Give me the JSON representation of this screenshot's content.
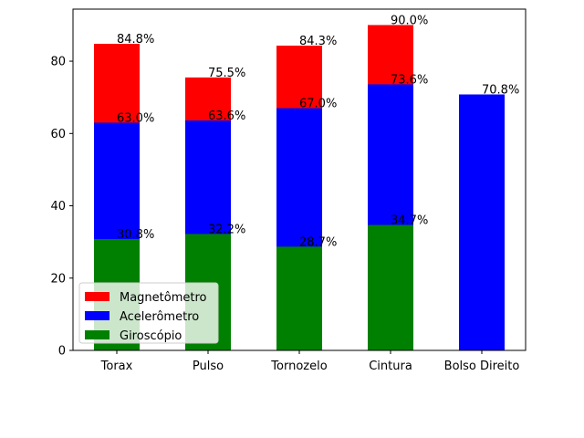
{
  "chart_data": {
    "type": "bar",
    "categories": [
      "Torax",
      "Pulso",
      "Tornozelo",
      "Cintura",
      "Bolso Direito"
    ],
    "series": [
      {
        "name": "Magnetômetro",
        "color": "#ff0000",
        "values": [
          84.8,
          75.5,
          84.3,
          90.0,
          null
        ],
        "value_labels": [
          "84.8%",
          "75.5%",
          "84.3%",
          "90.0%",
          null
        ]
      },
      {
        "name": "Acelerômetro",
        "color": "#0000ff",
        "values": [
          63.0,
          63.6,
          67.0,
          73.6,
          70.8
        ],
        "value_labels": [
          "63.0%",
          "63.6%",
          "67.0%",
          "73.6%",
          "70.8%"
        ]
      },
      {
        "name": "Giroscópio",
        "color": "#008000",
        "values": [
          30.8,
          32.2,
          28.7,
          34.7,
          null
        ],
        "value_labels": [
          "30.8%",
          "32.2%",
          "28.7%",
          "34.7%",
          null
        ]
      }
    ],
    "ylim": [
      0,
      94.4
    ],
    "yticks": [
      0,
      20,
      40,
      60,
      80
    ],
    "legend": "lower left",
    "grid": false
  }
}
